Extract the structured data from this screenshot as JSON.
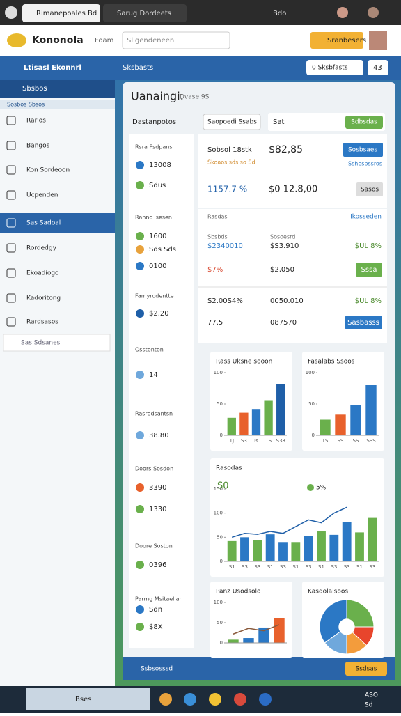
{
  "browser": {
    "tabs": [
      "Rimanepoales Bd",
      "Sarug Dordeets"
    ],
    "controls": "Bdo"
  },
  "header": {
    "brand": "Kononola",
    "link": "Foam",
    "search": "Sligendeneen",
    "button": "Sranbesers"
  },
  "navbar": {
    "title": "Ltisasl Ekonnrl",
    "menu": "Sksbasts",
    "button": "0 Sksbfasts",
    "counter": "43"
  },
  "sidebar": {
    "heading": "Sbsbos",
    "section": "Sosbos Sbsos",
    "items": [
      "Rarios",
      "Bangos",
      "Kon Sordeoon",
      "Ucpenden",
      "Sas Sadoal",
      "Rordedgy",
      "Ekoadiogo",
      "Kadoritong",
      "Rardsasos"
    ],
    "search": "Sas Sdsanes"
  },
  "main": {
    "title": "Uanaingi:",
    "subtitle": "Dvase 9S",
    "filter": "Dastanpotos",
    "dropdown": "Saopoedi Ssabs",
    "input": "Sat",
    "apply": "Sdbsdas"
  },
  "stats": [
    {
      "title": "Rsra Fsdpans",
      "rows": [
        "13008",
        "Sdus"
      ]
    },
    {
      "title": "Rannc Isesen",
      "rows": [
        "1600",
        "Sds Sds",
        "0100"
      ]
    },
    {
      "title": "Famyrodentte",
      "rows": [
        "$2.20"
      ]
    },
    {
      "title": "Osstenton",
      "rows": [
        "14"
      ]
    },
    {
      "title": "Rasrodsantsn",
      "rows": [
        "38.80"
      ]
    },
    {
      "title": "Doors Sosdon",
      "rows": [
        "3390",
        "1330"
      ]
    },
    {
      "title": "Doore Soston",
      "rows": [
        "0396"
      ]
    },
    {
      "title": "Parmg Msitaelian",
      "rows": [
        "Sdn",
        "$8X"
      ]
    }
  ],
  "summary": {
    "label": "Sobsol 18stk",
    "value": "$82,85",
    "button": "Sosbsaes",
    "note": "Skoaos sds so Sd",
    "link": "Sshesbssros",
    "change": "1157.7 %",
    "total": "$0 12.8,00",
    "action": "Sasos"
  },
  "table": {
    "title": "Rasdas",
    "link": "Ikosseden",
    "rows": [
      [
        "Sbsbds",
        "Sosoesrd"
      ],
      [
        "$2340010",
        "$S3.910",
        "$UL 8%"
      ],
      [
        "$7%",
        "$2,050",
        "Sssa"
      ],
      [
        "S2.00S4%",
        "0050.010",
        "$UL 8%"
      ],
      [
        "77.5",
        "087570",
        "Sasbasss"
      ]
    ]
  },
  "footer": {
    "label": "Ssbsosssd",
    "button": "Ssdsas"
  },
  "taskbar": {
    "search": "Bses",
    "time": "ASO",
    "date": "Sd"
  },
  "chart_data": [
    {
      "type": "bar",
      "title": "Rass Uksne sooon",
      "categories": [
        "1J",
        "S3",
        "Is",
        "1S",
        "S38"
      ],
      "values": [
        28,
        36,
        42,
        55,
        82
      ],
      "colors": [
        "#6ab04c",
        "#e8612c",
        "#2b78c5",
        "#6ab04c",
        "#1f5fa8"
      ],
      "ylim": [
        0,
        100
      ],
      "yticks": [
        0,
        50,
        100
      ]
    },
    {
      "type": "bar",
      "title": "Fasalabs Ssoos",
      "categories": [
        "1S",
        "SS",
        "SS",
        "SSS"
      ],
      "values": [
        25,
        33,
        48,
        80
      ],
      "colors": [
        "#6ab04c",
        "#e8612c",
        "#2b78c5",
        "#2b78c5"
      ],
      "ylim": [
        0,
        100
      ],
      "yticks": [
        0,
        50,
        100
      ]
    },
    {
      "type": "combo",
      "title": "Rasodas",
      "subtitle": "S0",
      "annotation": "5%",
      "categories": [
        "S1",
        "S3",
        "S3",
        "S1",
        "S3",
        "S1",
        "S3",
        "S1",
        "S3",
        "S3",
        "S1",
        "S3"
      ],
      "colors": [
        "#6ab04c",
        "#2b78c5",
        "#6ab04c",
        "#2b78c5",
        "#2b78c5",
        "#6ab04c",
        "#2b78c5",
        "#6ab04c",
        "#2b78c5",
        "#2b78c5",
        "#6ab04c",
        "#6ab04c"
      ],
      "series": [
        {
          "color": "#2b78c5",
          "values": [
            42,
            50,
            44,
            56,
            40,
            40,
            52,
            62,
            55,
            82,
            60,
            90
          ]
        },
        {
          "color": "#1f5fa8",
          "values": [
            50,
            58,
            56,
            62,
            58,
            72,
            86,
            80,
            100,
            112,
            null,
            null
          ]
        }
      ],
      "ylim": [
        0,
        150
      ],
      "yticks": [
        0,
        50,
        100,
        150
      ]
    },
    {
      "type": "combo",
      "title": "Panz Usodsolo",
      "categories": [
        null,
        null,
        null,
        null
      ],
      "colors": [
        "#6ab04c",
        "#2b78c5",
        "#2b78c5",
        "#e8612c"
      ],
      "series": [
        {
          "color": "#2b78c5",
          "values": [
            8,
            12,
            38,
            62
          ]
        },
        {
          "color": "#8a5a3c",
          "values": [
            22,
            36,
            30,
            45
          ]
        }
      ],
      "ylim": [
        0,
        100
      ],
      "yticks": [
        0,
        50,
        100
      ]
    },
    {
      "type": "pie",
      "title": "Kasdolalsoos",
      "values": [
        25,
        12,
        13,
        15,
        35
      ],
      "colors": [
        "#6ab04c",
        "#e8452c",
        "#f39c3c",
        "#6fa8dc",
        "#2b78c5"
      ]
    }
  ]
}
